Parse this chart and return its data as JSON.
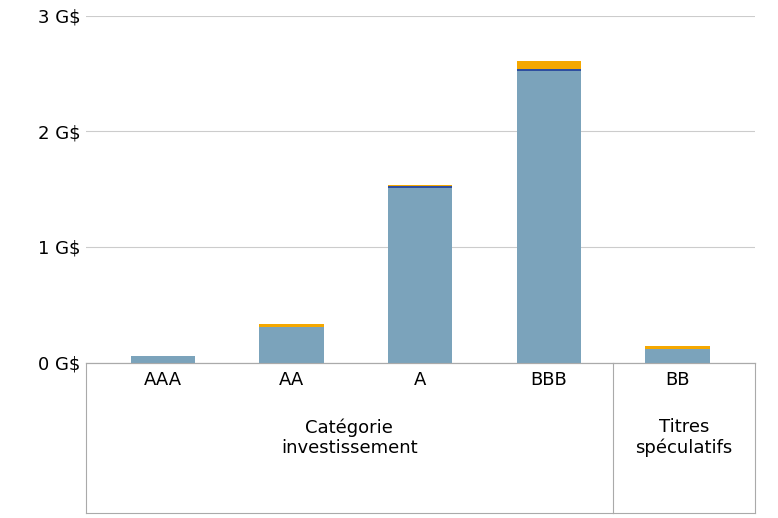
{
  "categories": [
    "AAA",
    "AA",
    "A",
    "BBB",
    "BB"
  ],
  "blue_values": [
    0.055,
    0.31,
    1.51,
    2.52,
    0.12
  ],
  "dark_blue_values": [
    0.0,
    0.0,
    0.015,
    0.015,
    0.0
  ],
  "orange_values": [
    0.0,
    0.025,
    0.01,
    0.075,
    0.02
  ],
  "bar_color": "#7ba3bb",
  "dark_blue_color": "#2e4fa0",
  "orange_color": "#f5a800",
  "background_color": "#ffffff",
  "ylim": [
    0,
    3.0
  ],
  "ytick_labels": [
    "0 G$",
    "1 G$",
    "2 G$",
    "3 G$"
  ],
  "ytick_values": [
    0,
    1,
    2,
    3
  ],
  "group1_label": "Catégorie\ninvestissement",
  "group2_label": "Titres\nspéculatifs",
  "bar_width": 0.5,
  "grid_color": "#cccccc",
  "axis_color": "#aaaaaa",
  "font_size": 13,
  "label_font_size": 13
}
